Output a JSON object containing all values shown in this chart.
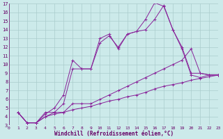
{
  "xlabel": "Windchill (Refroidissement éolien,°C)",
  "background_color": "#cceaea",
  "grid_color": "#aacccc",
  "line_color": "#882299",
  "xlim": [
    0,
    23
  ],
  "ylim": [
    3,
    17
  ],
  "xticks": [
    0,
    1,
    2,
    3,
    4,
    5,
    6,
    7,
    8,
    9,
    10,
    11,
    12,
    13,
    14,
    15,
    16,
    17,
    18,
    19,
    20,
    21,
    22,
    23
  ],
  "yticks": [
    3,
    4,
    5,
    6,
    7,
    8,
    9,
    10,
    11,
    12,
    13,
    14,
    15,
    16,
    17
  ],
  "lines": [
    [
      [
        1,
        4.5
      ],
      [
        2,
        3.3
      ],
      [
        3,
        3.3
      ],
      [
        4,
        4.5
      ],
      [
        5,
        4.5
      ],
      [
        6,
        5.5
      ],
      [
        7,
        9.5
      ],
      [
        8,
        9.5
      ],
      [
        9,
        9.5
      ],
      [
        10,
        12.5
      ],
      [
        11,
        13.3
      ],
      [
        12,
        12.0
      ],
      [
        13,
        13.5
      ],
      [
        14,
        13.8
      ],
      [
        15,
        15.2
      ],
      [
        16,
        17.1
      ],
      [
        17,
        16.7
      ],
      [
        18,
        14.0
      ],
      [
        19,
        12.0
      ],
      [
        20,
        9.0
      ],
      [
        21,
        9.0
      ],
      [
        22,
        8.8
      ],
      [
        23,
        8.8
      ]
    ],
    [
      [
        1,
        4.5
      ],
      [
        2,
        3.3
      ],
      [
        3,
        3.3
      ],
      [
        4,
        4.3
      ],
      [
        5,
        5.0
      ],
      [
        6,
        6.5
      ],
      [
        7,
        10.5
      ],
      [
        8,
        9.5
      ],
      [
        9,
        9.5
      ],
      [
        10,
        13.0
      ],
      [
        11,
        13.5
      ],
      [
        12,
        11.8
      ],
      [
        13,
        13.5
      ],
      [
        14,
        13.8
      ],
      [
        15,
        14.0
      ],
      [
        16,
        15.2
      ],
      [
        17,
        16.8
      ],
      [
        18,
        14.0
      ],
      [
        19,
        11.8
      ],
      [
        20,
        8.8
      ],
      [
        21,
        8.5
      ],
      [
        22,
        8.8
      ],
      [
        23,
        8.8
      ]
    ],
    [
      [
        1,
        4.5
      ],
      [
        2,
        3.3
      ],
      [
        3,
        3.3
      ],
      [
        4,
        4.0
      ],
      [
        5,
        4.5
      ],
      [
        6,
        4.5
      ],
      [
        7,
        5.5
      ],
      [
        8,
        5.5
      ],
      [
        9,
        5.5
      ],
      [
        10,
        6.0
      ],
      [
        11,
        6.5
      ],
      [
        12,
        7.0
      ],
      [
        13,
        7.5
      ],
      [
        14,
        8.0
      ],
      [
        15,
        8.5
      ],
      [
        16,
        9.0
      ],
      [
        17,
        9.5
      ],
      [
        18,
        10.0
      ],
      [
        19,
        10.5
      ],
      [
        20,
        11.8
      ],
      [
        21,
        9.0
      ],
      [
        22,
        8.8
      ],
      [
        23,
        8.8
      ]
    ],
    [
      [
        1,
        4.5
      ],
      [
        2,
        3.3
      ],
      [
        3,
        3.3
      ],
      [
        4,
        4.0
      ],
      [
        5,
        4.3
      ],
      [
        6,
        4.5
      ],
      [
        7,
        4.8
      ],
      [
        8,
        5.0
      ],
      [
        9,
        5.2
      ],
      [
        10,
        5.5
      ],
      [
        11,
        5.8
      ],
      [
        12,
        6.0
      ],
      [
        13,
        6.3
      ],
      [
        14,
        6.5
      ],
      [
        15,
        6.8
      ],
      [
        16,
        7.2
      ],
      [
        17,
        7.5
      ],
      [
        18,
        7.7
      ],
      [
        19,
        7.9
      ],
      [
        20,
        8.2
      ],
      [
        21,
        8.4
      ],
      [
        22,
        8.6
      ],
      [
        23,
        8.8
      ]
    ]
  ]
}
